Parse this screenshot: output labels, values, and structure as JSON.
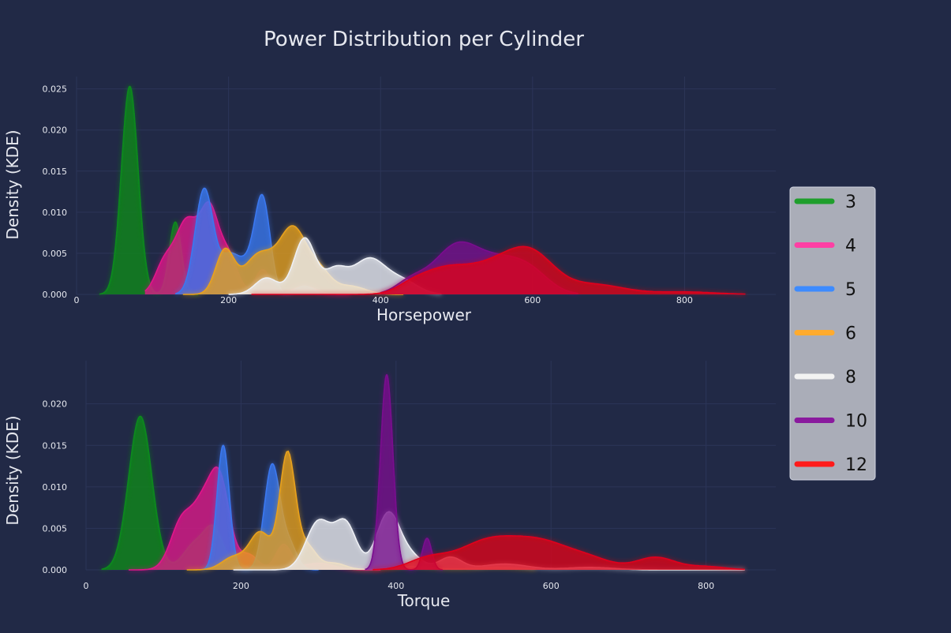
{
  "chart_data": {
    "title": "Power Distribution per Cylinder",
    "legend": {
      "position": "right",
      "entries": [
        {
          "name": "3",
          "color": "#1f9e2c"
        },
        {
          "name": "4",
          "color": "#ff3fa4"
        },
        {
          "name": "5",
          "color": "#3d8bff"
        },
        {
          "name": "6",
          "color": "#ffab2e"
        },
        {
          "name": "8",
          "color": "#f2f2f2"
        },
        {
          "name": "10",
          "color": "#8a1a9e"
        },
        {
          "name": "12",
          "color": "#ff1a1a"
        }
      ]
    },
    "panels": [
      {
        "type": "area",
        "xlabel": "Horsepower",
        "ylabel": "Density (KDE)",
        "xlim": [
          0,
          920
        ],
        "ylim": [
          0,
          0.0265
        ],
        "xticks": [
          0,
          200,
          400,
          600,
          800
        ],
        "yticks": [
          0.0,
          0.005,
          0.01,
          0.015,
          0.02,
          0.025
        ],
        "ytick_labels": [
          "0.000",
          "0.005",
          "0.010",
          "0.015",
          "0.020",
          "0.025"
        ],
        "grid": true,
        "series": [
          {
            "name": "3",
            "color": "#0f8a1a",
            "peaks": [
              [
                70,
                0.0253,
                11
              ],
              [
                130,
                0.0088,
                8
              ]
            ],
            "range": [
              30,
              160
            ]
          },
          {
            "name": "4",
            "color": "#e0198a",
            "peaks": [
              [
                115,
                0.0035,
                12
              ],
              [
                145,
                0.0088,
                15
              ],
              [
                175,
                0.0095,
                12
              ],
              [
                200,
                0.0045,
                12
              ],
              [
                245,
                0.003,
                10
              ],
              [
                300,
                0.001,
                15
              ]
            ],
            "range": [
              90,
              360
            ]
          },
          {
            "name": "5",
            "color": "#3a78f0",
            "peaks": [
              [
                168,
                0.0128,
                12
              ],
              [
                200,
                0.004,
                12
              ],
              [
                225,
                0.0035,
                14
              ],
              [
                245,
                0.0108,
                10
              ],
              [
                300,
                0.001,
                12
              ]
            ],
            "range": [
              130,
              320
            ]
          },
          {
            "name": "6",
            "color": "#e8a21c",
            "peaks": [
              [
                195,
                0.0052,
                12
              ],
              [
                240,
                0.0048,
                20
              ],
              [
                285,
                0.0078,
                18
              ],
              [
                320,
                0.0025,
                15
              ],
              [
                360,
                0.001,
                20
              ]
            ],
            "range": [
              140,
              430
            ]
          },
          {
            "name": "8",
            "color": "#eef0f5",
            "peaks": [
              [
                250,
                0.002,
                15
              ],
              [
                300,
                0.0068,
                14
              ],
              [
                340,
                0.0028,
                15
              ],
              [
                385,
                0.0043,
                22
              ],
              [
                430,
                0.0015,
                20
              ]
            ],
            "range": [
              200,
              480
            ]
          },
          {
            "name": "10",
            "color": "#7a0f8e",
            "peaks": [
              [
                440,
                0.0015,
                20
              ],
              [
                500,
                0.0058,
                30
              ],
              [
                560,
                0.0035,
                30
              ],
              [
                600,
                0.002,
                25
              ]
            ],
            "range": [
              400,
              660
            ]
          },
          {
            "name": "12",
            "color": "#e0041a",
            "peaks": [
              [
                440,
                0.0008,
                20
              ],
              [
                480,
                0.0025,
                30
              ],
              [
                550,
                0.0035,
                40
              ],
              [
                600,
                0.0038,
                30
              ],
              [
                680,
                0.0012,
                40
              ],
              [
                800,
                0.0003,
                40
              ]
            ],
            "range": [
              230,
              880
            ]
          }
        ]
      },
      {
        "type": "area",
        "xlabel": "Torque",
        "ylabel": "Density (KDE)",
        "xlim": [
          0,
          890
        ],
        "ylim": [
          0,
          0.0252
        ],
        "xticks": [
          0,
          200,
          400,
          600,
          800
        ],
        "yticks": [
          0.0,
          0.005,
          0.01,
          0.015,
          0.02
        ],
        "ytick_labels": [
          "0.000",
          "0.005",
          "0.010",
          "0.015",
          "0.020"
        ],
        "grid": true,
        "series": [
          {
            "name": "3",
            "color": "#0f8a1a",
            "peaks": [
              [
                70,
                0.0185,
                15
              ],
              [
                140,
                0.003,
                15
              ],
              [
                165,
                0.0045,
                12
              ],
              [
                195,
                0.0008,
                10
              ]
            ],
            "range": [
              20,
              210
            ]
          },
          {
            "name": "4",
            "color": "#e0198a",
            "peaks": [
              [
                125,
                0.0062,
                15
              ],
              [
                150,
                0.0055,
                12
              ],
              [
                172,
                0.011,
                13
              ],
              [
                210,
                0.0018,
                12
              ],
              [
                255,
                0.003,
                10
              ],
              [
                300,
                0.0008,
                20
              ]
            ],
            "range": [
              55,
              380
            ]
          },
          {
            "name": "5",
            "color": "#3a78f0",
            "peaks": [
              [
                177,
                0.015,
                8
              ],
              [
                240,
                0.0125,
                10
              ],
              [
                262,
                0.003,
                10
              ]
            ],
            "range": [
              150,
              300
            ]
          },
          {
            "name": "6",
            "color": "#e8a21c",
            "peaks": [
              [
                190,
                0.0015,
                15
              ],
              [
                225,
                0.0045,
                14
              ],
              [
                260,
                0.0138,
                10
              ],
              [
                285,
                0.0028,
                12
              ],
              [
                320,
                0.0008,
                15
              ],
              [
                420,
                0.0004,
                30
              ],
              [
                530,
                0.0003,
                30
              ]
            ],
            "range": [
              130,
              580
            ]
          },
          {
            "name": "8",
            "color": "#eef0f5",
            "peaks": [
              [
                300,
                0.0058,
                16
              ],
              [
                335,
                0.0055,
                14
              ],
              [
                390,
                0.0068,
                15
              ],
              [
                420,
                0.0015,
                15
              ],
              [
                470,
                0.0015,
                15
              ],
              [
                540,
                0.0007,
                30
              ],
              [
                650,
                0.0003,
                30
              ]
            ],
            "range": [
              190,
              850
            ]
          },
          {
            "name": "10",
            "color": "#7a0f8e",
            "peaks": [
              [
                388,
                0.0235,
                8
              ],
              [
                440,
                0.0038,
                6
              ]
            ],
            "range": [
              360,
              460
            ]
          },
          {
            "name": "12",
            "color": "#e0041a",
            "peaks": [
              [
                440,
                0.0012,
                25
              ],
              [
                520,
                0.0035,
                40
              ],
              [
                590,
                0.0028,
                35
              ],
              [
                650,
                0.0012,
                30
              ],
              [
                735,
                0.0015,
                25
              ],
              [
                800,
                0.0004,
                25
              ]
            ],
            "range": [
              370,
              850
            ]
          }
        ]
      }
    ]
  }
}
